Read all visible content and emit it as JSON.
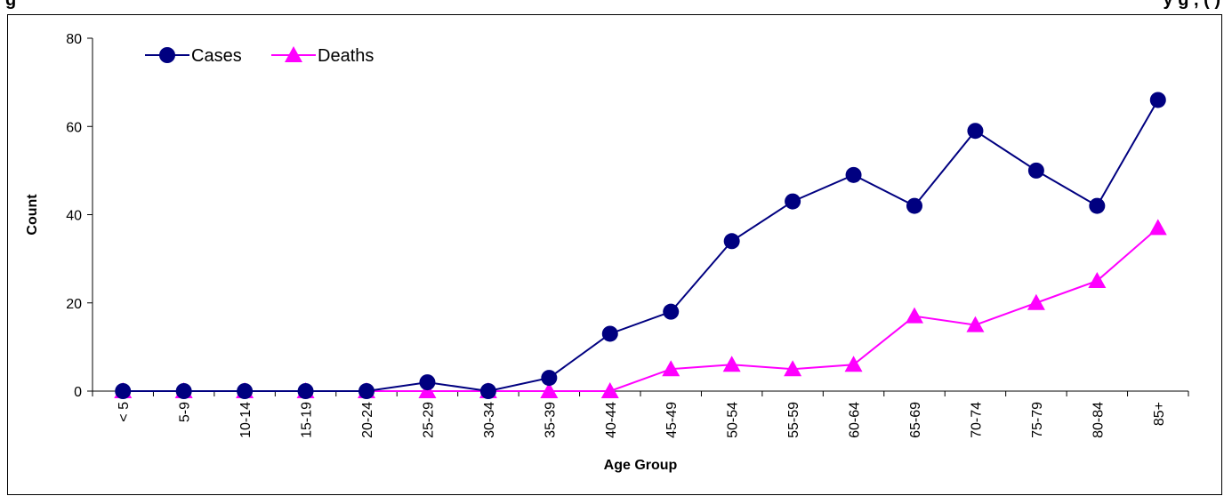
{
  "header": {
    "title_left_fragment": "g",
    "title_right_fragment": "y g , ( )"
  },
  "chart_data": {
    "type": "line",
    "categories": [
      "< 5",
      "5-9",
      "10-14",
      "15-19",
      "20-24",
      "25-29",
      "30-34",
      "35-39",
      "40-44",
      "45-49",
      "50-54",
      "55-59",
      "60-64",
      "65-69",
      "70-74",
      "75-79",
      "80-84",
      "85+"
    ],
    "series": [
      {
        "name": "Cases",
        "color": "#000080",
        "marker": "circle",
        "values": [
          0,
          0,
          0,
          0,
          0,
          2,
          0,
          3,
          13,
          18,
          34,
          43,
          49,
          42,
          59,
          50,
          42,
          66
        ]
      },
      {
        "name": "Deaths",
        "color": "#ff00ff",
        "marker": "triangle",
        "values": [
          0,
          0,
          0,
          0,
          0,
          0,
          0,
          0,
          0,
          5,
          6,
          5,
          6,
          17,
          15,
          20,
          25,
          37
        ]
      }
    ],
    "xlabel": "Age Group",
    "ylabel": "Count",
    "ylim": [
      0,
      80
    ],
    "yticks": [
      0,
      20,
      40,
      60,
      80
    ],
    "grid": false,
    "legend_position": "top-left"
  }
}
